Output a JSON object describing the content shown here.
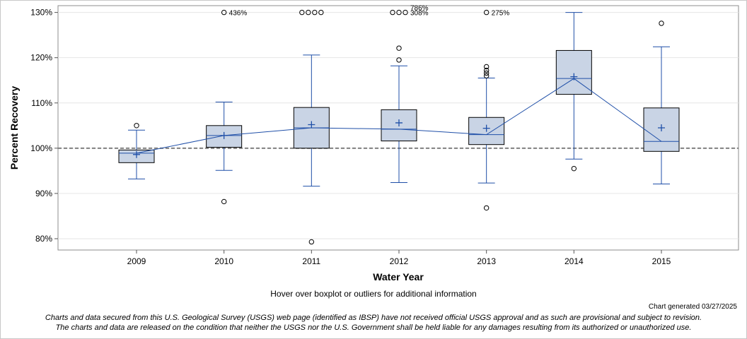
{
  "chart_data": {
    "type": "boxplot",
    "title": "",
    "xlabel": "Water Year",
    "ylabel": "Percent Recovery",
    "ylim": [
      77.5,
      131.5
    ],
    "y_ticks": [
      80,
      90,
      100,
      110,
      120,
      130
    ],
    "y_tick_labels": [
      "80%",
      "90%",
      "100%",
      "110%",
      "120%",
      "130%"
    ],
    "reference_line": 100,
    "categories": [
      "2009",
      "2010",
      "2011",
      "2012",
      "2013",
      "2014",
      "2015"
    ],
    "boxes": [
      {
        "year": "2009",
        "whisker_low": 93.2,
        "q1": 96.8,
        "median": 98.9,
        "q3": 99.6,
        "whisker_high": 104.0,
        "mean": 98.6,
        "outliers": [
          105.0
        ],
        "offscale": []
      },
      {
        "year": "2010",
        "whisker_low": 95.1,
        "q1": 100.2,
        "median": 102.8,
        "q3": 105.0,
        "whisker_high": 110.2,
        "mean": 102.8,
        "outliers": [
          88.2
        ],
        "offscale": [
          "436%"
        ]
      },
      {
        "year": "2011",
        "whisker_low": 91.6,
        "q1": 100.0,
        "median": 104.5,
        "q3": 109.0,
        "whisker_high": 120.6,
        "mean": 105.2,
        "outliers": [
          79.3
        ],
        "offscale": []
      },
      {
        "year": "2012",
        "whisker_low": 92.4,
        "q1": 101.6,
        "median": 104.2,
        "q3": 108.5,
        "whisker_high": 118.2,
        "mean": 105.6,
        "outliers": [
          119.5,
          122.1
        ],
        "offscale": [
          "786%",
          "308%"
        ]
      },
      {
        "year": "2013",
        "whisker_low": 92.3,
        "q1": 100.8,
        "median": 103.0,
        "q3": 106.8,
        "whisker_high": 115.5,
        "mean": 104.4,
        "outliers": [
          116.0,
          116.6,
          117.2,
          118.0,
          86.8
        ],
        "offscale": [
          "275%"
        ]
      },
      {
        "year": "2014",
        "whisker_low": 97.6,
        "q1": 111.9,
        "median": 115.4,
        "q3": 121.6,
        "whisker_high": 130.0,
        "mean": 115.8,
        "outliers": [
          95.5
        ],
        "offscale": []
      },
      {
        "year": "2015",
        "whisker_low": 92.1,
        "q1": 99.3,
        "median": 101.5,
        "q3": 108.9,
        "whisker_high": 122.4,
        "mean": 104.5,
        "outliers": [
          127.6
        ],
        "offscale": []
      }
    ],
    "offscale_markers": [
      {
        "year": "2010",
        "count": 1,
        "label": "436%"
      },
      {
        "year": "2011",
        "count": 4,
        "label": ""
      },
      {
        "year": "2012",
        "count": 3,
        "label": "786%"
      },
      {
        "year": "2012",
        "count": 0,
        "label": "308%"
      },
      {
        "year": "2013",
        "count": 1,
        "label": "275%"
      }
    ],
    "colors": {
      "box_fill": "#c9d4e5",
      "box_stroke": "#000000",
      "whisker": "#1f4fa8",
      "median_line": "#1f4fa8",
      "mean_marker": "#1f4fa8",
      "connect_line": "#1f4fa8",
      "reference_line": "#808080",
      "grid": "#e6e6e6"
    }
  },
  "hover_note": "Hover over boxplot or outliers for additional information",
  "generated": "Chart generated 03/27/2025",
  "disclaimer_line1": "Charts and data secured from this U.S. Geological Survey (USGS) web page (identified as IBSP) have not received official USGS approval and as such are provisional and subject to revision.",
  "disclaimer_line2": "The charts and data are released on the condition that neither the USGS nor the U.S. Government shall be held liable for any damages resulting from its authorized or unauthorized use."
}
